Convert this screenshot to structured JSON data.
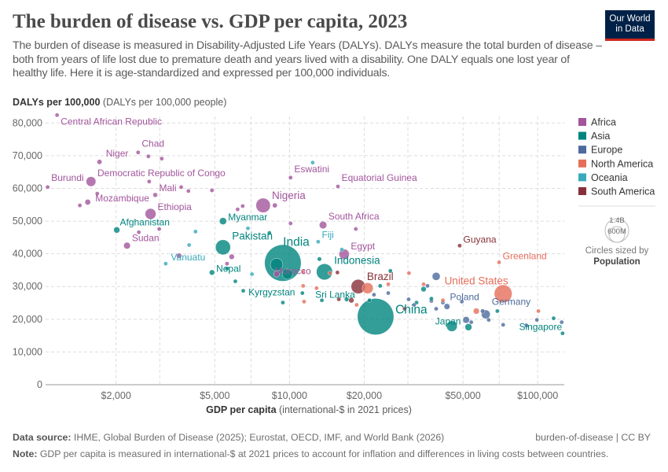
{
  "header": {
    "title": "The burden of disease vs. GDP per capita, 2023",
    "subtitle": "The burden of disease is measured in Disability-Adjusted Life Years (DALYs). DALYs measure the total burden of disease – both from years of life lost due to premature death and years lived with a disability. One DALY equals one lost year of healthy life. Here it is age-standardized and expressed per 100,000 individuals.",
    "logo_line1": "Our World",
    "logo_line2": "in Data"
  },
  "footer": {
    "source_label": "Data source:",
    "source": "IHME, Global Burden of Disease (2025); Eurostat, OECD, IMF, and World Bank (2026)",
    "slug": "burden-of-disease | CC BY",
    "note_label": "Note:",
    "note": "GDP per capita is measured in international-$ at 2021 prices to account for inflation and differences in living costs between countries."
  },
  "chart_data": {
    "type": "scatter",
    "title": "The burden of disease vs. GDP per capita, 2023",
    "xlabel_bold": "GDP per capita",
    "xlabel_rest": "(international-$ in 2021 prices)",
    "ylabel_bold": "DALYs per 100,000",
    "ylabel_rest": "(DALYs per 100,000 people)",
    "x_scale": "log",
    "xlim": [
      1040,
      128000
    ],
    "ylim": [
      0,
      82000
    ],
    "x_ticks": [
      {
        "v": 2000,
        "label": "$2,000"
      },
      {
        "v": 5000,
        "label": "$5,000"
      },
      {
        "v": 10000,
        "label": "$10,000"
      },
      {
        "v": 20000,
        "label": "$20,000"
      },
      {
        "v": 50000,
        "label": "$50,000"
      },
      {
        "v": 100000,
        "label": "$100,000"
      }
    ],
    "y_ticks": [
      {
        "v": 0,
        "label": "0"
      },
      {
        "v": 10000,
        "label": "10,000"
      },
      {
        "v": 20000,
        "label": "20,000"
      },
      {
        "v": 30000,
        "label": "30,000"
      },
      {
        "v": 40000,
        "label": "40,000"
      },
      {
        "v": 50000,
        "label": "50,000"
      },
      {
        "v": 60000,
        "label": "60,000"
      },
      {
        "v": 70000,
        "label": "70,000"
      },
      {
        "v": 80000,
        "label": "80,000"
      }
    ],
    "grid": true,
    "legend_placement": "right",
    "size_legend": {
      "title": "Circles sized by",
      "variable": "Population",
      "values": [
        {
          "v": 1400,
          "label": "1.4B"
        },
        {
          "v": 600,
          "label": "600M"
        }
      ]
    },
    "regions": [
      {
        "name": "Africa",
        "color": "#a2559c"
      },
      {
        "name": "Asia",
        "color": "#00847e"
      },
      {
        "name": "Europe",
        "color": "#4c6a9c"
      },
      {
        "name": "North America",
        "color": "#e56e5a"
      },
      {
        "name": "Oceania",
        "color": "#38aaba"
      },
      {
        "name": "South America",
        "color": "#883039"
      }
    ],
    "points": [
      {
        "country": "Central African Republic",
        "region": "Africa",
        "gdp": 1157,
        "daly": 82400,
        "pop": 5
      },
      {
        "country": "Chad",
        "region": "Africa",
        "gdp": 2455,
        "daly": 71000,
        "pop": 18
      },
      {
        "country": "Niger",
        "region": "Africa",
        "gdp": 1715,
        "daly": 68100,
        "pop": 26
      },
      {
        "country": "Burundi",
        "region": "Africa",
        "gdp": 1060,
        "daly": 60400,
        "pop": 13
      },
      {
        "country": "Democratic Republic of Congo",
        "region": "Africa",
        "gdp": 1585,
        "daly": 62100,
        "pop": 102
      },
      {
        "country": "Mali",
        "region": "Africa",
        "gdp": 2877,
        "daly": 58000,
        "pop": 23
      },
      {
        "country": "Mozambique",
        "region": "Africa",
        "gdp": 1538,
        "daly": 55800,
        "pop": 34
      },
      {
        "country": "Ethiopia",
        "region": "Africa",
        "gdp": 2754,
        "daly": 52200,
        "pop": 126
      },
      {
        "country": "Afghanistan",
        "region": "Asia",
        "gdp": 2013,
        "daly": 47300,
        "pop": 41
      },
      {
        "country": "Sudan",
        "region": "Africa",
        "gdp": 2214,
        "daly": 42500,
        "pop": 48
      },
      {
        "country": "Vanuatu",
        "region": "Oceania",
        "gdp": 3170,
        "daly": 37000,
        "pop": 0.3
      },
      {
        "country": "Nepal",
        "region": "Asia",
        "gdp": 4870,
        "daly": 34300,
        "pop": 30
      },
      {
        "country": "Myanmar",
        "region": "Asia",
        "gdp": 5395,
        "daly": 50000,
        "pop": 54
      },
      {
        "country": "Pakistan",
        "region": "Asia",
        "gdp": 5395,
        "daly": 42000,
        "pop": 240
      },
      {
        "country": "Nigeria",
        "region": "Africa",
        "gdp": 7830,
        "daly": 54800,
        "pop": 223
      },
      {
        "country": "Eswatini",
        "region": "Africa",
        "gdp": 10100,
        "daly": 63300,
        "pop": 1.2
      },
      {
        "country": "Equatorial Guinea",
        "region": "Africa",
        "gdp": 15670,
        "daly": 60600,
        "pop": 1.7
      },
      {
        "country": "South Africa",
        "region": "Africa",
        "gdp": 13650,
        "daly": 48800,
        "pop": 60
      },
      {
        "country": "Fiji",
        "region": "Oceania",
        "gdp": 13050,
        "daly": 43700,
        "pop": 0.9
      },
      {
        "country": "Egypt",
        "region": "Africa",
        "gdp": 16600,
        "daly": 39900,
        "pop": 112
      },
      {
        "country": "India",
        "region": "Asia",
        "gdp": 9400,
        "daly": 37200,
        "pop": 1430
      },
      {
        "country": "Indonesia",
        "region": "Asia",
        "gdp": 13830,
        "daly": 34500,
        "pop": 277
      },
      {
        "country": "Morocco",
        "region": "Africa",
        "gdp": 8870,
        "daly": 33800,
        "pop": 37
      },
      {
        "country": "Kyrgyzstan",
        "region": "Asia",
        "gdp": 6510,
        "daly": 28700,
        "pop": 7
      },
      {
        "country": "Brazil",
        "region": "South America",
        "gdp": 18920,
        "daly": 30000,
        "pop": 216
      },
      {
        "country": "Sri Lanka",
        "region": "Asia",
        "gdp": 16990,
        "daly": 26100,
        "pop": 22
      },
      {
        "country": "China",
        "region": "Asia",
        "gdp": 22230,
        "daly": 20800,
        "pop": 1420
      },
      {
        "country": "Guyana",
        "region": "South America",
        "gdp": 48500,
        "daly": 42500,
        "pop": 0.8
      },
      {
        "country": "Greenland",
        "region": "North America",
        "gdp": 69900,
        "daly": 37400,
        "pop": 0.06
      },
      {
        "country": "United States",
        "region": "North America",
        "gdp": 72600,
        "daly": 27800,
        "pop": 340
      },
      {
        "country": "Poland",
        "region": "Europe",
        "gdp": 43100,
        "daly": 23900,
        "pop": 37
      },
      {
        "country": "Germany",
        "region": "Europe",
        "gdp": 61800,
        "daly": 21500,
        "pop": 84
      },
      {
        "country": "Japan",
        "region": "Asia",
        "gdp": 45100,
        "daly": 17900,
        "pop": 124
      },
      {
        "country": "Singapore",
        "region": "Asia",
        "gdp": 126000,
        "daly": 15700,
        "pop": 6
      },
      {
        "region": "Africa",
        "gdp": 1429,
        "daly": 54800,
        "pop": 5
      },
      {
        "region": "Africa",
        "gdp": 1680,
        "daly": 58400,
        "pop": 6
      },
      {
        "region": "Africa",
        "gdp": 2700,
        "daly": 69800,
        "pop": 4
      },
      {
        "region": "Africa",
        "gdp": 3055,
        "daly": 69100,
        "pop": 3
      },
      {
        "region": "Africa",
        "gdp": 2720,
        "daly": 62100,
        "pop": 2
      },
      {
        "region": "Africa",
        "gdp": 3660,
        "daly": 60400,
        "pop": 8
      },
      {
        "region": "Africa",
        "gdp": 3915,
        "daly": 59200,
        "pop": 3
      },
      {
        "region": "Africa",
        "gdp": 4870,
        "daly": 59400,
        "pop": 12
      },
      {
        "region": "Africa",
        "gdp": 2985,
        "daly": 47600,
        "pop": 4
      },
      {
        "region": "Africa",
        "gdp": 2470,
        "daly": 46600,
        "pop": 8
      },
      {
        "region": "Africa",
        "gdp": 3590,
        "daly": 39400,
        "pop": 30
      },
      {
        "region": "Africa",
        "gdp": 5600,
        "daly": 37000,
        "pop": 4
      },
      {
        "region": "Africa",
        "gdp": 5850,
        "daly": 39100,
        "pop": 30
      },
      {
        "region": "Africa",
        "gdp": 6475,
        "daly": 54600,
        "pop": 12
      },
      {
        "region": "Africa",
        "gdp": 6180,
        "daly": 53600,
        "pop": 5
      },
      {
        "region": "Africa",
        "gdp": 8730,
        "daly": 54800,
        "pop": 25
      },
      {
        "region": "Africa",
        "gdp": 10100,
        "daly": 49300,
        "pop": 3
      },
      {
        "region": "Africa",
        "gdp": 18500,
        "daly": 47600,
        "pop": 2
      },
      {
        "region": "Asia",
        "gdp": 8300,
        "daly": 46400,
        "pop": 4
      },
      {
        "region": "Asia",
        "gdp": 13200,
        "daly": 38400,
        "pop": 20
      },
      {
        "region": "Asia",
        "gdp": 11270,
        "daly": 28000,
        "pop": 6
      },
      {
        "region": "Asia",
        "gdp": 13500,
        "daly": 25800,
        "pop": 8
      },
      {
        "region": "Asia",
        "gdp": 21000,
        "daly": 25800,
        "pop": 12
      },
      {
        "region": "Asia",
        "gdp": 23200,
        "daly": 30200,
        "pop": 6
      },
      {
        "region": "Asia",
        "gdp": 34700,
        "daly": 29200,
        "pop": 30
      },
      {
        "region": "Asia",
        "gdp": 32500,
        "daly": 25100,
        "pop": 8
      },
      {
        "region": "Asia",
        "gdp": 37300,
        "daly": 26300,
        "pop": 5
      },
      {
        "region": "Asia",
        "gdp": 52600,
        "daly": 17600,
        "pop": 52
      },
      {
        "region": "Asia",
        "gdp": 68800,
        "daly": 22500,
        "pop": 4
      },
      {
        "region": "Asia",
        "gdp": 116000,
        "daly": 20300,
        "pop": 3
      },
      {
        "region": "Asia",
        "gdp": 8870,
        "daly": 36700,
        "pop": 170
      },
      {
        "region": "Asia",
        "gdp": 9800,
        "daly": 33800,
        "pop": 115
      },
      {
        "region": "Asia",
        "gdp": 25500,
        "daly": 34800,
        "pop": 10
      },
      {
        "region": "Asia",
        "gdp": 9400,
        "daly": 25100,
        "pop": 3
      },
      {
        "region": "Asia",
        "gdp": 6050,
        "daly": 31600,
        "pop": 6
      },
      {
        "region": "Asia",
        "gdp": 5600,
        "daly": 35500,
        "pop": 5
      },
      {
        "region": "Oceania",
        "gdp": 12400,
        "daly": 67900,
        "pop": 1
      },
      {
        "region": "Oceania",
        "gdp": 6800,
        "daly": 47800,
        "pop": 1
      },
      {
        "region": "Oceania",
        "gdp": 3940,
        "daly": 42700,
        "pop": 1
      },
      {
        "region": "Oceania",
        "gdp": 4180,
        "daly": 46800,
        "pop": 1
      },
      {
        "region": "Oceania",
        "gdp": 7060,
        "daly": 33800,
        "pop": 1
      },
      {
        "region": "Oceania",
        "gdp": 16250,
        "daly": 41300,
        "pop": 1
      },
      {
        "region": "Europe",
        "gdp": 39000,
        "daly": 33100,
        "pop": 68
      },
      {
        "region": "Europe",
        "gdp": 37300,
        "daly": 25600,
        "pop": 10
      },
      {
        "region": "Europe",
        "gdp": 41500,
        "daly": 25100,
        "pop": 10
      },
      {
        "region": "Europe",
        "gdp": 49500,
        "daly": 25400,
        "pop": 5
      },
      {
        "region": "Europe",
        "gdp": 60000,
        "daly": 22500,
        "pop": 20
      },
      {
        "region": "Europe",
        "gdp": 51500,
        "daly": 19800,
        "pop": 48
      },
      {
        "region": "Europe",
        "gdp": 54000,
        "daly": 19100,
        "pop": 6
      },
      {
        "region": "Europe",
        "gdp": 63500,
        "daly": 19800,
        "pop": 10
      },
      {
        "region": "Europe",
        "gdp": 72600,
        "daly": 18300,
        "pop": 6
      },
      {
        "region": "Europe",
        "gdp": 90100,
        "daly": 18100,
        "pop": 5
      },
      {
        "region": "Europe",
        "gdp": 99300,
        "daly": 19800,
        "pop": 3
      },
      {
        "region": "Europe",
        "gdp": 125000,
        "daly": 19100,
        "pop": 1
      },
      {
        "region": "Europe",
        "gdp": 36000,
        "daly": 30200,
        "pop": 5
      },
      {
        "region": "Europe",
        "gdp": 39000,
        "daly": 23200,
        "pop": 5
      },
      {
        "region": "Europe",
        "gdp": 31800,
        "daly": 24400,
        "pop": 4
      },
      {
        "region": "Europe",
        "gdp": 30200,
        "daly": 26100,
        "pop": 3
      },
      {
        "region": "Europe",
        "gdp": 21900,
        "daly": 27500,
        "pop": 4
      },
      {
        "region": "Europe",
        "gdp": 25000,
        "daly": 28000,
        "pop": 3
      },
      {
        "region": "North America",
        "gdp": 11350,
        "daly": 34500,
        "pop": 2
      },
      {
        "region": "North America",
        "gdp": 11350,
        "daly": 30200,
        "pop": 2
      },
      {
        "region": "North America",
        "gdp": 12850,
        "daly": 29500,
        "pop": 2
      },
      {
        "region": "North America",
        "gdp": 11450,
        "daly": 25400,
        "pop": 2
      },
      {
        "region": "North America",
        "gdp": 20650,
        "daly": 29500,
        "pop": 130
      },
      {
        "region": "North America",
        "gdp": 25000,
        "daly": 30700,
        "pop": 2
      },
      {
        "region": "North America",
        "gdp": 30300,
        "daly": 34100,
        "pop": 2
      },
      {
        "region": "North America",
        "gdp": 41500,
        "daly": 25800,
        "pop": 2
      },
      {
        "region": "North America",
        "gdp": 34700,
        "daly": 30700,
        "pop": 2
      },
      {
        "region": "North America",
        "gdp": 56600,
        "daly": 22500,
        "pop": 39
      },
      {
        "region": "North America",
        "gdp": 100700,
        "daly": 22500,
        "pop": 2
      },
      {
        "region": "North America",
        "gdp": 14550,
        "daly": 34100,
        "pop": 2
      },
      {
        "region": "North America",
        "gdp": 18650,
        "daly": 24400,
        "pop": 2
      },
      {
        "region": "South America",
        "gdp": 17750,
        "daly": 25800,
        "pop": 30
      },
      {
        "region": "South America",
        "gdp": 15800,
        "daly": 26100,
        "pop": 8
      },
      {
        "region": "South America",
        "gdp": 15600,
        "daly": 34300,
        "pop": 3
      },
      {
        "region": "South America",
        "gdp": 29100,
        "daly": 23200,
        "pop": 3
      }
    ]
  }
}
